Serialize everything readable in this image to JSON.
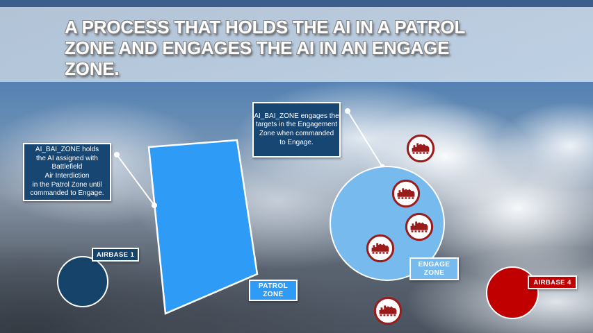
{
  "slide": {
    "title": "A PROCESS THAT HOLDS THE AI IN A PATROL\nZONE AND ENGAGES THE AI IN AN ENGAGE\nZONE."
  },
  "callouts": {
    "hold": "AI_BAI_ZONE holds\nthe AI assigned with\nBattlefield\nAir Interdiction\nin the Patrol Zone until\ncommanded to Engage.",
    "engage": "AI_BAI_ZONE engages the\ntargets in the Engagement\nZone when commanded\nto Engage."
  },
  "zones": {
    "patrol_label": "PATROL\nZONE",
    "engage_label": "ENGAGE\nZONE"
  },
  "airbases": {
    "airbase1_label": "AIRBASE 1",
    "airbase4_label": "AIRBASE 4"
  },
  "targets": {
    "icon": "tank-in-red-ring",
    "count": 5
  },
  "colors": {
    "patrol_blue": "#2E9CF7",
    "engage_blue": "#76BAEE",
    "callout_navy": "#174672",
    "airbase1_navy": "#16436A",
    "airbase_red": "#C00000",
    "tank_red": "#9A1B1B",
    "banner_overlay": "#CBD8E6",
    "top_strip_blue": "#3B5E8C"
  }
}
